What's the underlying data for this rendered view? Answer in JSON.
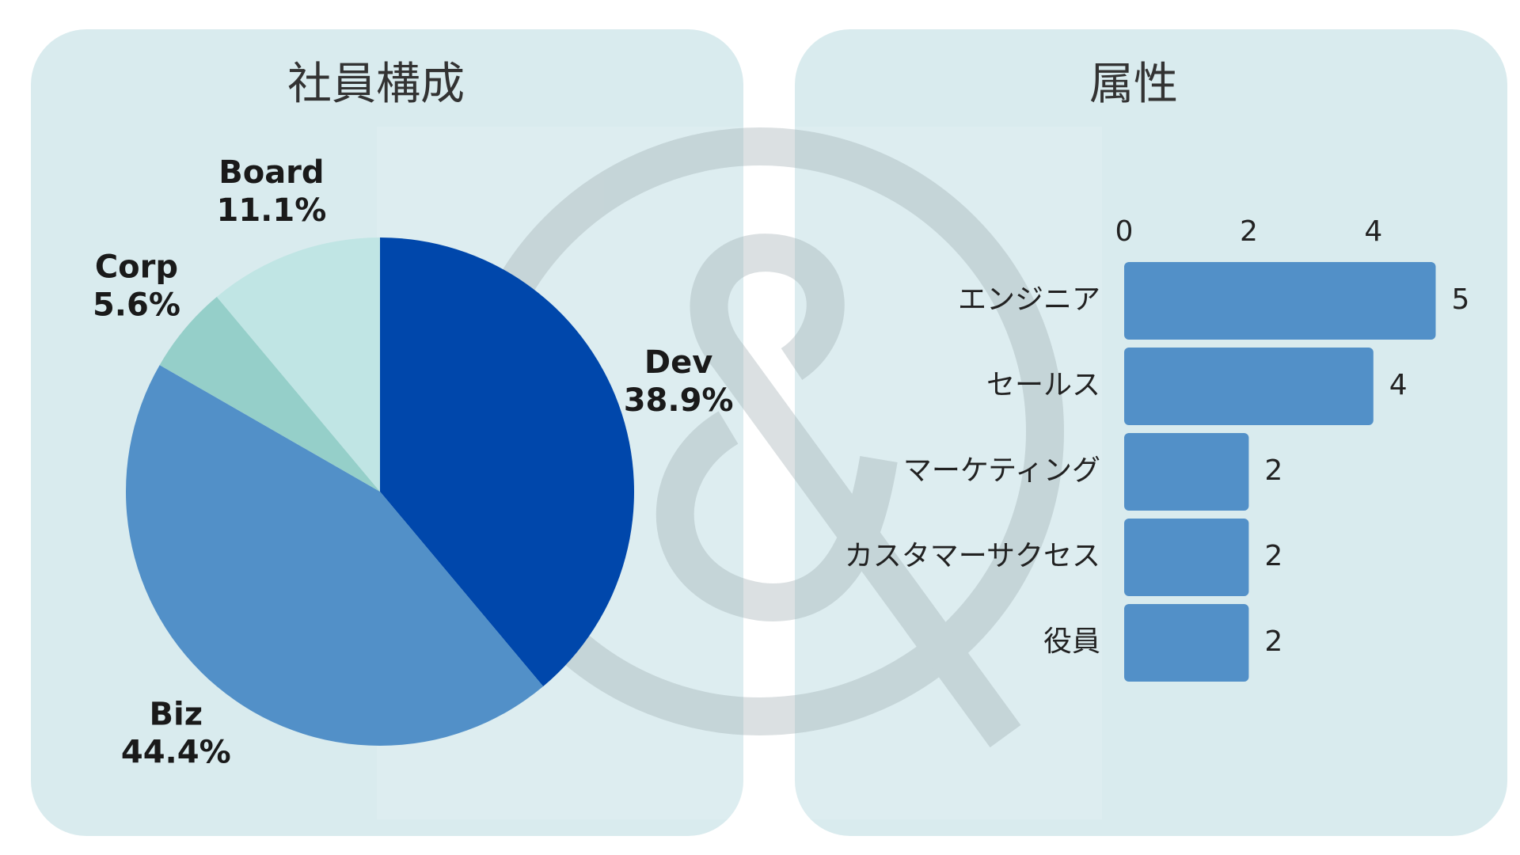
{
  "chart_data": [
    {
      "type": "pie",
      "title": "社員構成",
      "categories": [
        "Dev",
        "Biz",
        "Corp",
        "Board"
      ],
      "values": [
        38.9,
        44.4,
        5.6,
        11.1
      ],
      "value_labels": [
        "38.9%",
        "44.4%",
        "5.6%",
        "11.1%"
      ],
      "colors": [
        "#0047ab",
        "#5290c8",
        "#95cfc9",
        "#c0e5e4"
      ]
    },
    {
      "type": "hbar",
      "title": "属性",
      "categories": [
        "エンジニア",
        "セールス",
        "マーケティング",
        "カスタマーサクセス",
        "役員"
      ],
      "values": [
        5,
        4,
        2,
        2,
        2
      ],
      "color": "#5290c8",
      "xlim": [
        0,
        5
      ],
      "xticks": [
        0,
        2,
        4
      ]
    }
  ]
}
